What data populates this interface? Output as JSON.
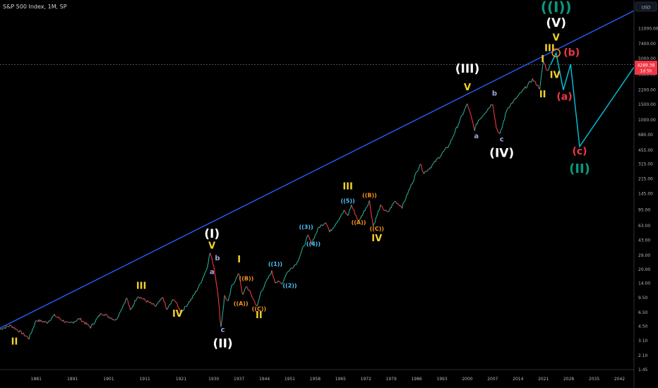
{
  "header": {
    "title": "S&P 500 Index, 1M, SP"
  },
  "currency": "USD",
  "price_tag": {
    "value": "4289.38",
    "countdown": "1d 5h",
    "color": "#f23645"
  },
  "colors": {
    "trendline": "#2962ff",
    "projection": "#00bcd4",
    "yellow": "#f5d22a",
    "white": "#ffffff",
    "red": "#f23645",
    "green": "#089981",
    "cyan": "#4fc3f7",
    "orange": "#f7931a",
    "lavender": "#9fa8da"
  },
  "chart_data": {
    "type": "line",
    "scale": "log",
    "x_axis": {
      "range": [
        1871,
        2046
      ],
      "ticks": [
        1881,
        1891,
        1901,
        1911,
        1921,
        1930,
        1937,
        1944,
        1951,
        1958,
        1965,
        1972,
        1979,
        1986,
        1993,
        2000,
        2007,
        2014,
        2021,
        2028,
        2035,
        2042
      ]
    },
    "y_axis": {
      "range": [
        1.45,
        20000
      ],
      "ticks": [
        "11000.00",
        "7400.00",
        "5000.00",
        "3300.00",
        "2200.00",
        "1500.00",
        "1000.00",
        "680.00",
        "455.00",
        "315.00",
        "215.00",
        "145.00",
        "95.00",
        "63.00",
        "43.00",
        "29.00",
        "20.00",
        "14.00",
        "9.50",
        "6.50",
        "4.50",
        "3.10",
        "2.10",
        "1.45"
      ]
    },
    "series": [
      {
        "points": [
          [
            1871,
            4.2
          ],
          [
            1874,
            4.6
          ],
          [
            1877,
            3.8
          ],
          [
            1879,
            3.3
          ],
          [
            1881,
            5.3
          ],
          [
            1884,
            5.0
          ],
          [
            1886,
            6.0
          ],
          [
            1890,
            4.8
          ],
          [
            1893,
            5.5
          ],
          [
            1896,
            4.4
          ],
          [
            1899,
            6.4
          ],
          [
            1903,
            5.3
          ],
          [
            1906,
            9.5
          ],
          [
            1907,
            6.8
          ],
          [
            1909,
            10.0
          ],
          [
            1914,
            7.6
          ],
          [
            1916,
            9.6
          ],
          [
            1917,
            6.9
          ],
          [
            1919,
            9.3
          ],
          [
            1921,
            6.5
          ],
          [
            1924,
            9.4
          ],
          [
            1926,
            13.0
          ],
          [
            1928,
            20.0
          ],
          [
            1929,
            31.0
          ],
          [
            1930,
            22.0
          ],
          [
            1931,
            12.0
          ],
          [
            1932,
            4.4
          ],
          [
            1933,
            10.0
          ],
          [
            1934,
            8.5
          ],
          [
            1935,
            13.0
          ],
          [
            1937,
            18.0
          ],
          [
            1938,
            10.0
          ],
          [
            1939,
            13.0
          ],
          [
            1940,
            11.0
          ],
          [
            1942,
            7.5
          ],
          [
            1943,
            11.0
          ],
          [
            1946,
            19.0
          ],
          [
            1947,
            14.5
          ],
          [
            1949,
            14.0
          ],
          [
            1950,
            18.0
          ],
          [
            1953,
            24.0
          ],
          [
            1956,
            48.0
          ],
          [
            1957,
            40.0
          ],
          [
            1959,
            60.0
          ],
          [
            1961,
            70.0
          ],
          [
            1962,
            53.0
          ],
          [
            1966,
            92.0
          ],
          [
            1967,
            82.0
          ],
          [
            1968,
            108.0
          ],
          [
            1970,
            70.0
          ],
          [
            1973,
            120.0
          ],
          [
            1974,
            62.0
          ],
          [
            1976,
            105.0
          ],
          [
            1978,
            88.0
          ],
          [
            1980,
            120.0
          ],
          [
            1982,
            103.0
          ],
          [
            1987,
            320.0
          ],
          [
            1988,
            250.0
          ],
          [
            1990,
            295.0
          ],
          [
            1995,
            520.0
          ],
          [
            1998,
            1000.0
          ],
          [
            2000,
            1530.0
          ],
          [
            2001,
            1100.0
          ],
          [
            2002,
            780.0
          ],
          [
            2003,
            980.0
          ],
          [
            2007,
            1560.0
          ],
          [
            2008,
            820.0
          ],
          [
            2009,
            680.0
          ],
          [
            2011,
            1350.0
          ],
          [
            2015,
            2080.0
          ],
          [
            2018,
            2900.0
          ],
          [
            2020,
            2300.0
          ],
          [
            2021,
            4700.0
          ],
          [
            2022,
            3600.0
          ],
          [
            2023,
            4289.38
          ]
        ]
      },
      {
        "points": [
          [
            2023,
            4289.38
          ],
          [
            2024.5,
            5800.0
          ],
          [
            2026.5,
            2200.0
          ],
          [
            2028.5,
            4300.0
          ],
          [
            2031,
            500.0
          ],
          [
            2046,
            4000.0
          ]
        ]
      }
    ],
    "trendline": {
      "from": [
        1871,
        4.3
      ],
      "to": [
        2046,
        17500
      ]
    },
    "annotations": [
      {
        "text": "II",
        "x": 1875,
        "y": 2.8,
        "color": "yellow",
        "size": 13
      },
      {
        "text": "III",
        "x": 1910,
        "y": 12.0,
        "color": "yellow",
        "size": 13
      },
      {
        "text": "IV",
        "x": 1920,
        "y": 5.8,
        "color": "yellow",
        "size": 13
      },
      {
        "text": "V",
        "x": 1929.5,
        "y": 34.5,
        "color": "yellow",
        "size": 13
      },
      {
        "text": "(I)",
        "x": 1929.5,
        "y": 46.0,
        "color": "white",
        "size": 17
      },
      {
        "text": "a",
        "x": 1929.5,
        "y": 17.8,
        "color": "lavender",
        "size": 10
      },
      {
        "text": "b",
        "x": 1931.0,
        "y": 25.5,
        "color": "lavender",
        "size": 10
      },
      {
        "text": "c",
        "x": 1932.5,
        "y": 3.9,
        "color": "lavender",
        "size": 10
      },
      {
        "text": "(II)",
        "x": 1932.5,
        "y": 2.6,
        "color": "white",
        "size": 17
      },
      {
        "text": "I",
        "x": 1937.0,
        "y": 24.0,
        "color": "yellow",
        "size": 13
      },
      {
        "text": "((B))",
        "x": 1939.0,
        "y": 15.0,
        "color": "orange",
        "size": 8
      },
      {
        "text": "((A))",
        "x": 1937.5,
        "y": 7.8,
        "color": "orange",
        "size": 8
      },
      {
        "text": "((C))",
        "x": 1942.5,
        "y": 6.8,
        "color": "orange",
        "size": 8
      },
      {
        "text": "II",
        "x": 1942.5,
        "y": 5.6,
        "color": "yellow",
        "size": 13
      },
      {
        "text": "((1))",
        "x": 1947.0,
        "y": 22.0,
        "color": "cyan",
        "size": 8
      },
      {
        "text": "((2))",
        "x": 1951.0,
        "y": 12.5,
        "color": "cyan",
        "size": 8
      },
      {
        "text": "((3))",
        "x": 1955.5,
        "y": 58.0,
        "color": "cyan",
        "size": 8
      },
      {
        "text": "((4))",
        "x": 1957.5,
        "y": 37.0,
        "color": "cyan",
        "size": 8
      },
      {
        "text": "((5))",
        "x": 1967.0,
        "y": 114.0,
        "color": "cyan",
        "size": 8
      },
      {
        "text": "III",
        "x": 1967.0,
        "y": 163.0,
        "color": "yellow",
        "size": 13
      },
      {
        "text": "((B))",
        "x": 1973.0,
        "y": 133.0,
        "color": "orange",
        "size": 8
      },
      {
        "text": "((A))",
        "x": 1970.0,
        "y": 65.0,
        "color": "orange",
        "size": 8
      },
      {
        "text": "((C))",
        "x": 1975.0,
        "y": 55.0,
        "color": "orange",
        "size": 8
      },
      {
        "text": "IV",
        "x": 1975.0,
        "y": 42.0,
        "color": "yellow",
        "size": 13
      },
      {
        "text": "V",
        "x": 2000.0,
        "y": 2180.0,
        "color": "yellow",
        "size": 13
      },
      {
        "text": "(III)",
        "x": 2000.0,
        "y": 3450.0,
        "color": "white",
        "size": 17
      },
      {
        "text": "a",
        "x": 2002.5,
        "y": 620.0,
        "color": "lavender",
        "size": 10
      },
      {
        "text": "b",
        "x": 2007.5,
        "y": 1900.0,
        "color": "lavender",
        "size": 10
      },
      {
        "text": "c",
        "x": 2009.5,
        "y": 570.0,
        "color": "lavender",
        "size": 10
      },
      {
        "text": "(IV)",
        "x": 2009.5,
        "y": 380.0,
        "color": "white",
        "size": 17
      },
      {
        "text": "I",
        "x": 2020.8,
        "y": 4550.0,
        "color": "yellow",
        "size": 13
      },
      {
        "text": "III",
        "x": 2022.7,
        "y": 6100.0,
        "color": "yellow",
        "size": 13
      },
      {
        "text": "II",
        "x": 2020.8,
        "y": 1820.0,
        "color": "yellow",
        "size": 13
      },
      {
        "text": "IV",
        "x": 2024.2,
        "y": 3000.0,
        "color": "yellow",
        "size": 13
      },
      {
        "text": "V",
        "x": 2024.5,
        "y": 8000.0,
        "color": "yellow",
        "size": 13
      },
      {
        "text": "(V)",
        "x": 2024.5,
        "y": 11500.0,
        "color": "white",
        "size": 17
      },
      {
        "text": "((I))",
        "x": 2024.5,
        "y": 17000.0,
        "color": "green",
        "size": 20
      },
      {
        "text": "(a)",
        "x": 2026.8,
        "y": 1700.0,
        "color": "red",
        "size": 14
      },
      {
        "text": "(b)",
        "x": 2028.8,
        "y": 5400.0,
        "color": "red",
        "size": 14
      },
      {
        "text": "(c)",
        "x": 2031.0,
        "y": 405.0,
        "color": "red",
        "size": 14
      },
      {
        "text": "(II)",
        "x": 2031.0,
        "y": 250.0,
        "color": "green",
        "size": 18
      }
    ],
    "marker": {
      "x": 2024.5,
      "y": 5800.0,
      "color": "orange"
    }
  }
}
